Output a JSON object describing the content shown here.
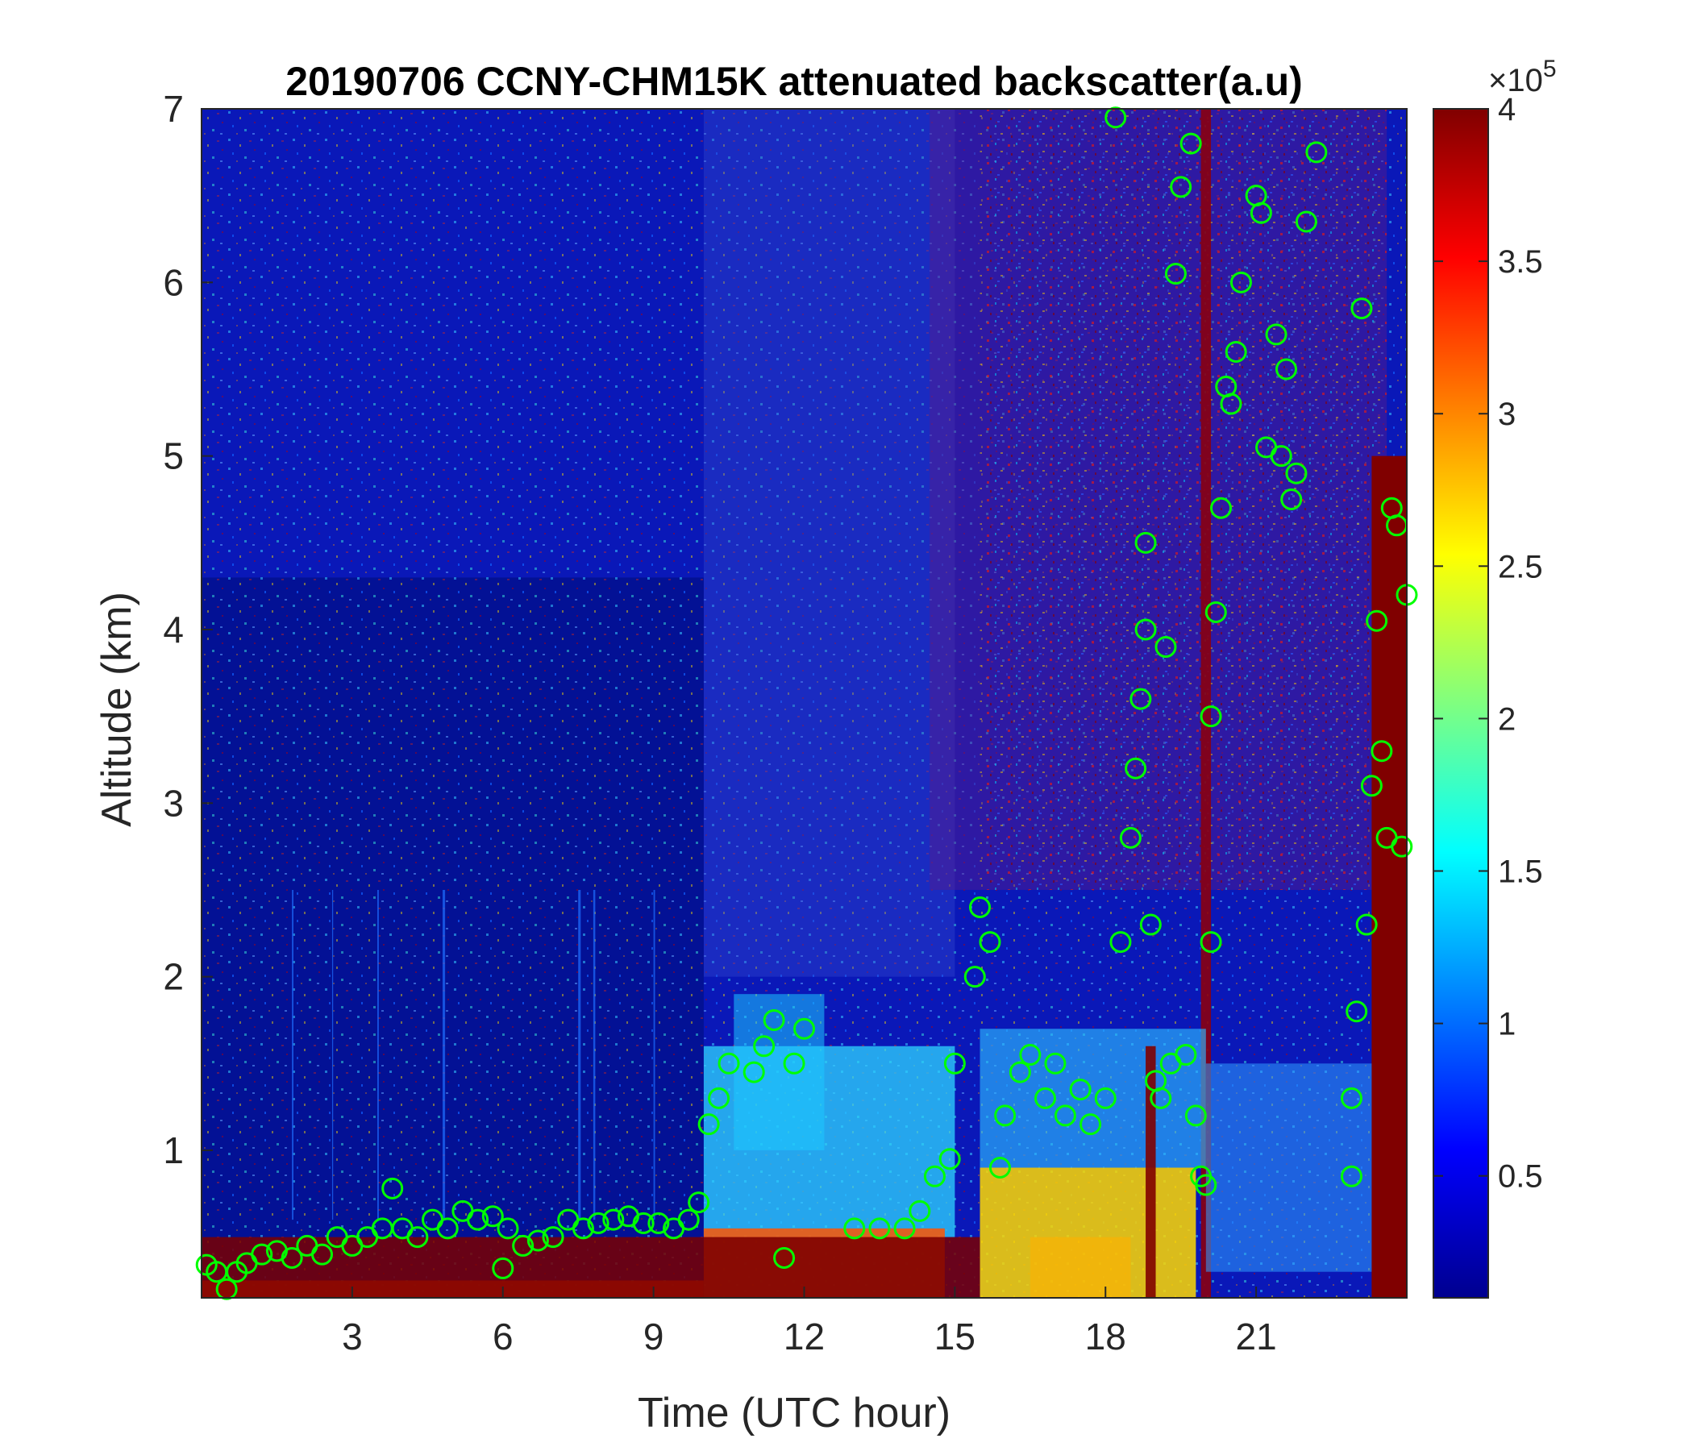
{
  "chart_data": {
    "type": "heatmap",
    "title": "20190706 CCNY-CHM15K attenuated backscatter(a.u)",
    "xlabel": "Time (UTC hour)",
    "ylabel": "Altitude (km)",
    "xlim": [
      0,
      24
    ],
    "ylim": [
      0.15,
      7
    ],
    "xticks": [
      3,
      6,
      9,
      12,
      15,
      18,
      21
    ],
    "xtick_labels": [
      "3",
      "6",
      "9",
      "12",
      "15",
      "18",
      "21"
    ],
    "yticks": [
      1,
      2,
      3,
      4,
      5,
      6,
      7
    ],
    "ytick_labels": [
      "1",
      "2",
      "3",
      "4",
      "5",
      "6",
      "7"
    ],
    "colorbar": {
      "colormap": "jet",
      "clim": [
        0.1,
        4
      ],
      "ticks": [
        0.5,
        1,
        1.5,
        2,
        2.5,
        3,
        3.5,
        4
      ],
      "tick_labels": [
        "0.5",
        "1",
        "1.5",
        "2",
        "2.5",
        "3",
        "3.5",
        "4"
      ],
      "exponent_label": "×10",
      "exponent_power": "5"
    },
    "series": [
      {
        "type": "scatter",
        "marker": "circle-open",
        "color": "#00ff00",
        "points": [
          [
            0.1,
            0.34
          ],
          [
            0.3,
            0.3
          ],
          [
            0.5,
            0.2
          ],
          [
            0.7,
            0.3
          ],
          [
            0.9,
            0.35
          ],
          [
            1.2,
            0.4
          ],
          [
            1.5,
            0.42
          ],
          [
            1.8,
            0.38
          ],
          [
            2.1,
            0.45
          ],
          [
            2.4,
            0.4
          ],
          [
            2.7,
            0.5
          ],
          [
            3.0,
            0.45
          ],
          [
            3.3,
            0.5
          ],
          [
            3.6,
            0.55
          ],
          [
            3.8,
            0.78
          ],
          [
            4.0,
            0.55
          ],
          [
            4.3,
            0.5
          ],
          [
            4.6,
            0.6
          ],
          [
            4.9,
            0.55
          ],
          [
            5.2,
            0.65
          ],
          [
            5.5,
            0.6
          ],
          [
            5.8,
            0.62
          ],
          [
            6.1,
            0.55
          ],
          [
            6.0,
            0.32
          ],
          [
            6.4,
            0.45
          ],
          [
            6.7,
            0.48
          ],
          [
            7.0,
            0.5
          ],
          [
            7.3,
            0.6
          ],
          [
            7.6,
            0.55
          ],
          [
            7.9,
            0.58
          ],
          [
            8.2,
            0.6
          ],
          [
            8.5,
            0.62
          ],
          [
            8.8,
            0.58
          ],
          [
            9.1,
            0.58
          ],
          [
            9.4,
            0.55
          ],
          [
            9.7,
            0.6
          ],
          [
            9.9,
            0.7
          ],
          [
            10.1,
            1.15
          ],
          [
            10.3,
            1.3
          ],
          [
            10.5,
            1.5
          ],
          [
            11.0,
            1.45
          ],
          [
            11.2,
            1.6
          ],
          [
            11.4,
            1.75
          ],
          [
            11.6,
            0.38
          ],
          [
            11.8,
            1.5
          ],
          [
            12.0,
            1.7
          ],
          [
            13.0,
            0.55
          ],
          [
            13.5,
            0.55
          ],
          [
            14.0,
            0.55
          ],
          [
            14.3,
            0.65
          ],
          [
            14.6,
            0.85
          ],
          [
            14.9,
            0.95
          ],
          [
            15.0,
            1.5
          ],
          [
            15.4,
            2.0
          ],
          [
            15.5,
            2.4
          ],
          [
            15.7,
            2.2
          ],
          [
            15.9,
            0.9
          ],
          [
            16.0,
            1.2
          ],
          [
            16.3,
            1.45
          ],
          [
            16.5,
            1.55
          ],
          [
            16.8,
            1.3
          ],
          [
            17.0,
            1.5
          ],
          [
            17.2,
            1.2
          ],
          [
            17.5,
            1.35
          ],
          [
            17.7,
            1.15
          ],
          [
            18.0,
            1.3
          ],
          [
            18.2,
            6.95
          ],
          [
            18.3,
            2.2
          ],
          [
            18.5,
            2.8
          ],
          [
            18.6,
            3.2
          ],
          [
            18.7,
            3.6
          ],
          [
            18.8,
            4.0
          ],
          [
            18.8,
            4.5
          ],
          [
            18.9,
            2.3
          ],
          [
            19.0,
            1.4
          ],
          [
            19.1,
            1.3
          ],
          [
            19.2,
            3.9
          ],
          [
            19.3,
            1.5
          ],
          [
            19.4,
            6.05
          ],
          [
            19.5,
            6.55
          ],
          [
            19.6,
            1.55
          ],
          [
            19.7,
            6.8
          ],
          [
            19.8,
            1.2
          ],
          [
            19.9,
            0.85
          ],
          [
            20.0,
            0.8
          ],
          [
            20.1,
            2.2
          ],
          [
            20.1,
            3.5
          ],
          [
            20.2,
            4.1
          ],
          [
            20.3,
            4.7
          ],
          [
            20.4,
            5.4
          ],
          [
            20.5,
            5.3
          ],
          [
            20.6,
            5.6
          ],
          [
            20.7,
            6.0
          ],
          [
            21.0,
            6.5
          ],
          [
            21.1,
            6.4
          ],
          [
            21.2,
            5.05
          ],
          [
            21.4,
            5.7
          ],
          [
            21.5,
            5.0
          ],
          [
            21.6,
            5.5
          ],
          [
            21.7,
            4.75
          ],
          [
            21.8,
            4.9
          ],
          [
            22.0,
            6.35
          ],
          [
            22.2,
            6.75
          ],
          [
            22.9,
            0.85
          ],
          [
            22.9,
            1.3
          ],
          [
            23.0,
            1.8
          ],
          [
            23.1,
            5.85
          ],
          [
            23.2,
            2.3
          ],
          [
            23.3,
            3.1
          ],
          [
            23.4,
            4.05
          ],
          [
            23.5,
            3.3
          ],
          [
            23.6,
            2.8
          ],
          [
            23.7,
            4.7
          ],
          [
            23.8,
            4.6
          ],
          [
            23.9,
            2.75
          ],
          [
            24.0,
            4.2
          ]
        ]
      }
    ]
  }
}
